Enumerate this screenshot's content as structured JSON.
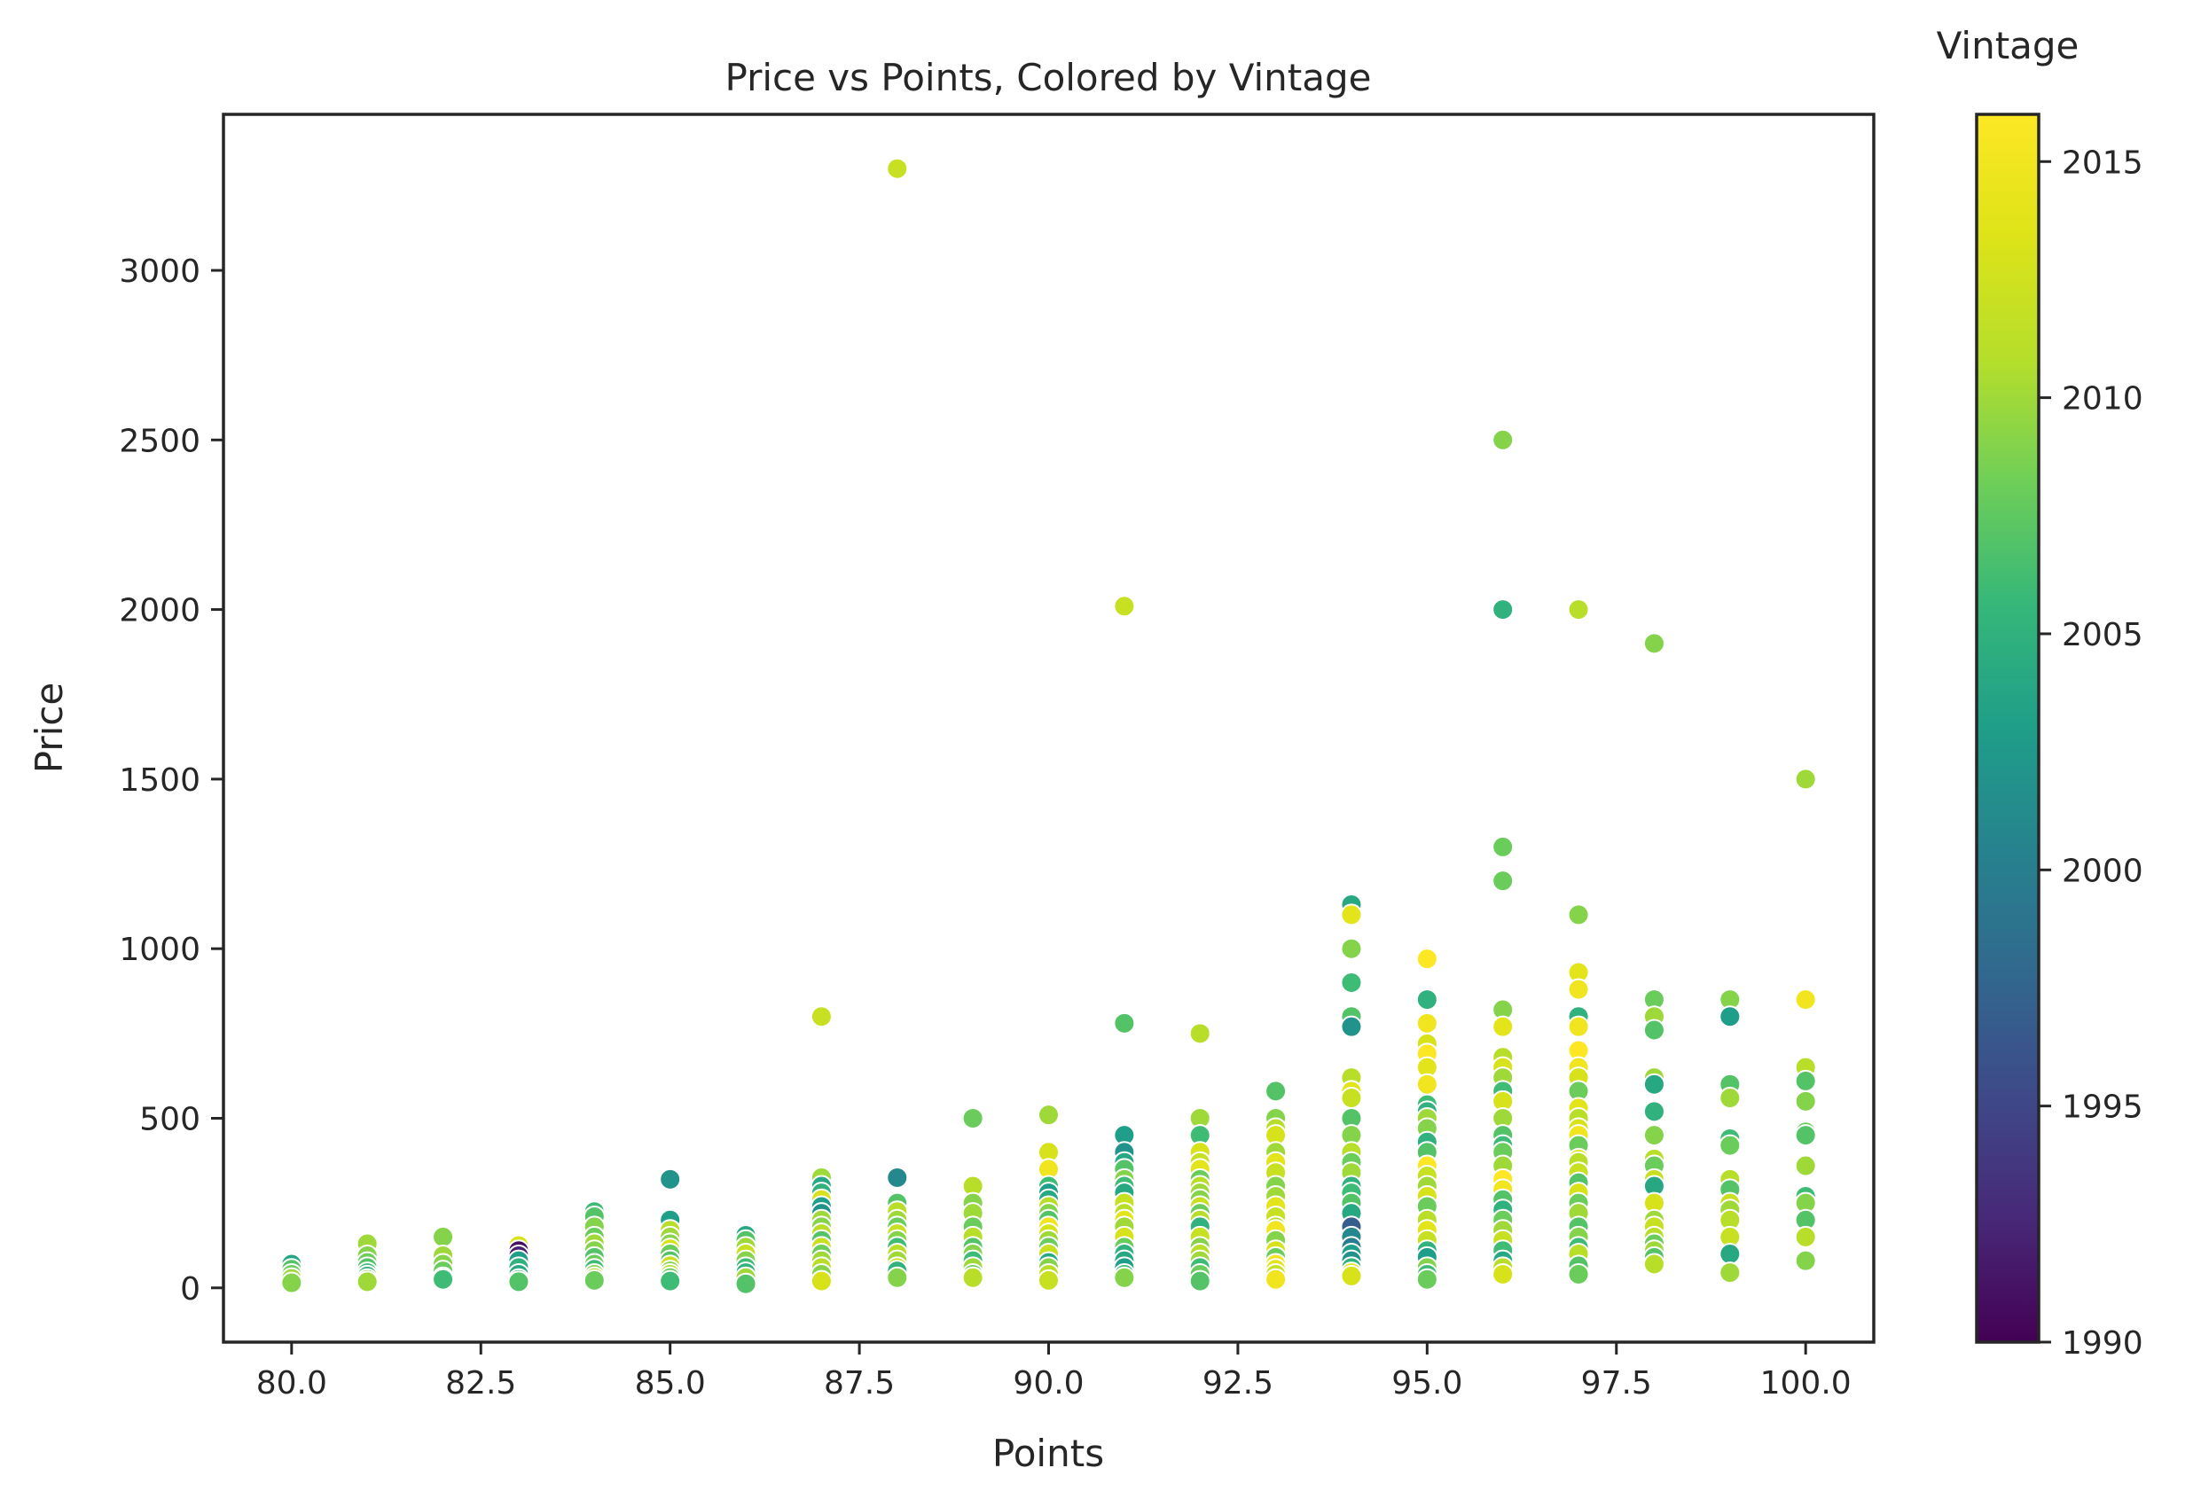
{
  "chart_data": {
    "type": "scatter",
    "title": "Price vs Points, Colored by Vintage",
    "xlabel": "Points",
    "ylabel": "Price",
    "xlim": [
      79.1,
      100.9
    ],
    "ylim": [
      -160,
      3460
    ],
    "xticks": [
      80.0,
      82.5,
      85.0,
      87.5,
      90.0,
      92.5,
      95.0,
      97.5,
      100.0
    ],
    "xtick_labels": [
      "80.0",
      "82.5",
      "85.0",
      "87.5",
      "90.0",
      "92.5",
      "95.0",
      "97.5",
      "100.0"
    ],
    "yticks": [
      0,
      500,
      1000,
      1500,
      2000,
      2500,
      3000
    ],
    "ytick_labels": [
      "0",
      "500",
      "1000",
      "1500",
      "2000",
      "2500",
      "3000"
    ],
    "grid": false,
    "colorbar": {
      "label": "Vintage",
      "colormap": "viridis",
      "range": [
        1990,
        2016
      ],
      "ticks": [
        1990,
        1995,
        2000,
        2005,
        2010,
        2015
      ],
      "tick_labels": [
        "1990",
        "1995",
        "2000",
        "2005",
        "2010",
        "2015"
      ]
    },
    "points": [
      [
        80,
        70,
        2004
      ],
      [
        80,
        55,
        2007
      ],
      [
        80,
        40,
        2008
      ],
      [
        80,
        28,
        2010
      ],
      [
        80,
        15,
        2009
      ],
      [
        81,
        130,
        2010
      ],
      [
        81,
        95,
        2009
      ],
      [
        81,
        75,
        2008
      ],
      [
        81,
        60,
        2007
      ],
      [
        81,
        45,
        2006
      ],
      [
        81,
        35,
        2005
      ],
      [
        81,
        25,
        2009
      ],
      [
        81,
        18,
        2010
      ],
      [
        82,
        150,
        2009
      ],
      [
        82,
        95,
        2010
      ],
      [
        82,
        70,
        2009
      ],
      [
        82,
        50,
        2008
      ],
      [
        82,
        30,
        2007
      ],
      [
        82,
        25,
        2006
      ],
      [
        83,
        125,
        2013
      ],
      [
        83,
        110,
        1991
      ],
      [
        83,
        95,
        1992
      ],
      [
        83,
        80,
        2003
      ],
      [
        83,
        60,
        2005
      ],
      [
        83,
        40,
        2004
      ],
      [
        83,
        25,
        2006
      ],
      [
        83,
        18,
        2007
      ],
      [
        84,
        225,
        2006
      ],
      [
        84,
        210,
        2007
      ],
      [
        84,
        180,
        2009
      ],
      [
        84,
        150,
        2008
      ],
      [
        84,
        130,
        2010
      ],
      [
        84,
        110,
        2009
      ],
      [
        84,
        90,
        2007
      ],
      [
        84,
        70,
        2008
      ],
      [
        84,
        55,
        2006
      ],
      [
        84,
        40,
        2009
      ],
      [
        84,
        30,
        2011
      ],
      [
        84,
        22,
        2008
      ],
      [
        85,
        320,
        2002
      ],
      [
        85,
        200,
        2003
      ],
      [
        85,
        170,
        2011
      ],
      [
        85,
        150,
        2010
      ],
      [
        85,
        130,
        2009
      ],
      [
        85,
        115,
        2013
      ],
      [
        85,
        100,
        2008
      ],
      [
        85,
        80,
        2007
      ],
      [
        85,
        65,
        2012
      ],
      [
        85,
        50,
        2009
      ],
      [
        85,
        40,
        2011
      ],
      [
        85,
        30,
        2008
      ],
      [
        85,
        20,
        2006
      ],
      [
        86,
        155,
        2004
      ],
      [
        86,
        140,
        2007
      ],
      [
        86,
        120,
        2010
      ],
      [
        86,
        100,
        2012
      ],
      [
        86,
        80,
        2009
      ],
      [
        86,
        60,
        2006
      ],
      [
        86,
        45,
        2005
      ],
      [
        86,
        30,
        2010
      ],
      [
        86,
        12,
        2007
      ],
      [
        87,
        800,
        2012
      ],
      [
        87,
        325,
        2010
      ],
      [
        87,
        300,
        2004
      ],
      [
        87,
        280,
        2005
      ],
      [
        87,
        260,
        2013
      ],
      [
        87,
        240,
        2003
      ],
      [
        87,
        220,
        2002
      ],
      [
        87,
        200,
        2010
      ],
      [
        87,
        180,
        2009
      ],
      [
        87,
        160,
        2011
      ],
      [
        87,
        140,
        2007
      ],
      [
        87,
        120,
        2012
      ],
      [
        87,
        100,
        2008
      ],
      [
        87,
        80,
        2010
      ],
      [
        87,
        60,
        2011
      ],
      [
        87,
        40,
        2009
      ],
      [
        87,
        20,
        2013
      ],
      [
        88,
        3300,
        2012
      ],
      [
        88,
        325,
        2001
      ],
      [
        88,
        250,
        2007
      ],
      [
        88,
        225,
        2011
      ],
      [
        88,
        200,
        2010
      ],
      [
        88,
        180,
        2008
      ],
      [
        88,
        160,
        2012
      ],
      [
        88,
        140,
        2009
      ],
      [
        88,
        120,
        2006
      ],
      [
        88,
        100,
        2011
      ],
      [
        88,
        80,
        2010
      ],
      [
        88,
        60,
        2012
      ],
      [
        88,
        50,
        2005
      ],
      [
        88,
        30,
        2009
      ],
      [
        89,
        500,
        2008
      ],
      [
        89,
        300,
        2011
      ],
      [
        89,
        250,
        2009
      ],
      [
        89,
        220,
        2010
      ],
      [
        89,
        180,
        2008
      ],
      [
        89,
        150,
        2011
      ],
      [
        89,
        120,
        2007
      ],
      [
        89,
        100,
        2009
      ],
      [
        89,
        80,
        2006
      ],
      [
        89,
        60,
        2010
      ],
      [
        89,
        40,
        2008
      ],
      [
        89,
        30,
        2011
      ],
      [
        90,
        510,
        2010
      ],
      [
        90,
        400,
        2013
      ],
      [
        90,
        350,
        2015
      ],
      [
        90,
        300,
        2006
      ],
      [
        90,
        280,
        2003
      ],
      [
        90,
        260,
        2004
      ],
      [
        90,
        240,
        2011
      ],
      [
        90,
        220,
        2009
      ],
      [
        90,
        200,
        2007
      ],
      [
        90,
        180,
        2015
      ],
      [
        90,
        160,
        2013
      ],
      [
        90,
        140,
        2010
      ],
      [
        90,
        120,
        2008
      ],
      [
        90,
        100,
        2012
      ],
      [
        90,
        75,
        2004
      ],
      [
        90,
        60,
        2009
      ],
      [
        90,
        40,
        2011
      ],
      [
        90,
        22,
        2012
      ],
      [
        91,
        2010,
        2012
      ],
      [
        91,
        780,
        2007
      ],
      [
        91,
        450,
        2003
      ],
      [
        91,
        400,
        2002
      ],
      [
        91,
        370,
        2004
      ],
      [
        91,
        350,
        2007
      ],
      [
        91,
        320,
        2009
      ],
      [
        91,
        300,
        2006
      ],
      [
        91,
        280,
        2004
      ],
      [
        91,
        250,
        2012
      ],
      [
        91,
        220,
        2011
      ],
      [
        91,
        200,
        2014
      ],
      [
        91,
        180,
        2010
      ],
      [
        91,
        150,
        2013
      ],
      [
        91,
        120,
        2008
      ],
      [
        91,
        100,
        2005
      ],
      [
        91,
        80,
        2004
      ],
      [
        91,
        60,
        2003
      ],
      [
        91,
        40,
        2006
      ],
      [
        91,
        30,
        2009
      ],
      [
        92,
        750,
        2011
      ],
      [
        92,
        500,
        2010
      ],
      [
        92,
        450,
        2006
      ],
      [
        92,
        400,
        2013
      ],
      [
        92,
        370,
        2012
      ],
      [
        92,
        350,
        2014
      ],
      [
        92,
        320,
        2008
      ],
      [
        92,
        300,
        2011
      ],
      [
        92,
        280,
        2010
      ],
      [
        92,
        260,
        2009
      ],
      [
        92,
        240,
        2012
      ],
      [
        92,
        220,
        2008
      ],
      [
        92,
        200,
        2011
      ],
      [
        92,
        180,
        2005
      ],
      [
        92,
        150,
        2012
      ],
      [
        92,
        120,
        2009
      ],
      [
        92,
        100,
        2011
      ],
      [
        92,
        80,
        2010
      ],
      [
        92,
        60,
        2006
      ],
      [
        92,
        40,
        2008
      ],
      [
        92,
        20,
        2007
      ],
      [
        93,
        580,
        2007
      ],
      [
        93,
        500,
        2009
      ],
      [
        93,
        470,
        2011
      ],
      [
        93,
        450,
        2013
      ],
      [
        93,
        400,
        2010
      ],
      [
        93,
        370,
        2014
      ],
      [
        93,
        340,
        2012
      ],
      [
        93,
        300,
        2009
      ],
      [
        93,
        270,
        2010
      ],
      [
        93,
        240,
        2014
      ],
      [
        93,
        210,
        2012
      ],
      [
        93,
        180,
        2011
      ],
      [
        93,
        170,
        2015
      ],
      [
        93,
        140,
        2009
      ],
      [
        93,
        110,
        2013
      ],
      [
        93,
        90,
        2008
      ],
      [
        93,
        70,
        2015
      ],
      [
        93,
        55,
        2014
      ],
      [
        93,
        40,
        2012
      ],
      [
        93,
        25,
        2015
      ],
      [
        94,
        1130,
        2004
      ],
      [
        94,
        1100,
        2014
      ],
      [
        94,
        1000,
        2009
      ],
      [
        94,
        900,
        2006
      ],
      [
        94,
        800,
        2007
      ],
      [
        94,
        770,
        2002
      ],
      [
        94,
        620,
        2011
      ],
      [
        94,
        580,
        2014
      ],
      [
        94,
        560,
        2012
      ],
      [
        94,
        500,
        2007
      ],
      [
        94,
        450,
        2009
      ],
      [
        94,
        400,
        2011
      ],
      [
        94,
        370,
        2008
      ],
      [
        94,
        340,
        2010
      ],
      [
        94,
        300,
        2005
      ],
      [
        94,
        280,
        2006
      ],
      [
        94,
        250,
        2007
      ],
      [
        94,
        220,
        2004
      ],
      [
        94,
        180,
        1997
      ],
      [
        94,
        150,
        2001
      ],
      [
        94,
        120,
        2000
      ],
      [
        94,
        100,
        2003
      ],
      [
        94,
        80,
        2002
      ],
      [
        94,
        60,
        2005
      ],
      [
        94,
        45,
        2014
      ],
      [
        94,
        35,
        2013
      ],
      [
        95,
        970,
        2016
      ],
      [
        95,
        850,
        2005
      ],
      [
        95,
        780,
        2015
      ],
      [
        95,
        720,
        2013
      ],
      [
        95,
        690,
        2016
      ],
      [
        95,
        650,
        2014
      ],
      [
        95,
        600,
        2015
      ],
      [
        95,
        540,
        2006
      ],
      [
        95,
        520,
        2005
      ],
      [
        95,
        500,
        2010
      ],
      [
        95,
        470,
        2009
      ],
      [
        95,
        430,
        2005
      ],
      [
        95,
        400,
        2007
      ],
      [
        95,
        360,
        2016
      ],
      [
        95,
        330,
        2012
      ],
      [
        95,
        300,
        2010
      ],
      [
        95,
        270,
        2013
      ],
      [
        95,
        240,
        2008
      ],
      [
        95,
        200,
        2011
      ],
      [
        95,
        170,
        2014
      ],
      [
        95,
        140,
        2012
      ],
      [
        95,
        110,
        2005
      ],
      [
        95,
        90,
        2003
      ],
      [
        95,
        60,
        2009
      ],
      [
        95,
        40,
        2006
      ],
      [
        95,
        25,
        2008
      ],
      [
        96,
        2500,
        2009
      ],
      [
        96,
        2000,
        2005
      ],
      [
        96,
        1300,
        2008
      ],
      [
        96,
        1200,
        2008
      ],
      [
        96,
        820,
        2009
      ],
      [
        96,
        770,
        2014
      ],
      [
        96,
        680,
        2011
      ],
      [
        96,
        650,
        2013
      ],
      [
        96,
        620,
        2010
      ],
      [
        96,
        580,
        2006
      ],
      [
        96,
        550,
        2013
      ],
      [
        96,
        500,
        2010
      ],
      [
        96,
        450,
        2007
      ],
      [
        96,
        420,
        2006
      ],
      [
        96,
        400,
        2008
      ],
      [
        96,
        360,
        2010
      ],
      [
        96,
        320,
        2016
      ],
      [
        96,
        290,
        2015
      ],
      [
        96,
        260,
        2007
      ],
      [
        96,
        230,
        2005
      ],
      [
        96,
        200,
        2008
      ],
      [
        96,
        170,
        2010
      ],
      [
        96,
        140,
        2012
      ],
      [
        96,
        110,
        2006
      ],
      [
        96,
        80,
        2004
      ],
      [
        96,
        60,
        2011
      ],
      [
        96,
        40,
        2013
      ],
      [
        97,
        2000,
        2011
      ],
      [
        97,
        1100,
        2009
      ],
      [
        97,
        930,
        2014
      ],
      [
        97,
        880,
        2015
      ],
      [
        97,
        800,
        2005
      ],
      [
        97,
        770,
        2015
      ],
      [
        97,
        700,
        2016
      ],
      [
        97,
        650,
        2015
      ],
      [
        97,
        620,
        2013
      ],
      [
        97,
        580,
        2008
      ],
      [
        97,
        530,
        2014
      ],
      [
        97,
        500,
        2011
      ],
      [
        97,
        470,
        2013
      ],
      [
        97,
        450,
        2015
      ],
      [
        97,
        420,
        2008
      ],
      [
        97,
        380,
        2014
      ],
      [
        97,
        370,
        2011
      ],
      [
        97,
        340,
        2012
      ],
      [
        97,
        310,
        2007
      ],
      [
        97,
        280,
        2013
      ],
      [
        97,
        250,
        2008
      ],
      [
        97,
        220,
        2010
      ],
      [
        97,
        180,
        2007
      ],
      [
        97,
        150,
        2009
      ],
      [
        97,
        120,
        2006
      ],
      [
        97,
        100,
        2011
      ],
      [
        97,
        65,
        2007
      ],
      [
        97,
        40,
        2008
      ],
      [
        98,
        1900,
        2009
      ],
      [
        98,
        850,
        2008
      ],
      [
        98,
        800,
        2010
      ],
      [
        98,
        760,
        2007
      ],
      [
        98,
        620,
        2010
      ],
      [
        98,
        600,
        2004
      ],
      [
        98,
        520,
        2005
      ],
      [
        98,
        450,
        2009
      ],
      [
        98,
        380,
        2011
      ],
      [
        98,
        360,
        2008
      ],
      [
        98,
        320,
        2012
      ],
      [
        98,
        300,
        2004
      ],
      [
        98,
        250,
        2013
      ],
      [
        98,
        200,
        2010
      ],
      [
        98,
        180,
        2012
      ],
      [
        98,
        150,
        2011
      ],
      [
        98,
        130,
        2008
      ],
      [
        98,
        110,
        2010
      ],
      [
        98,
        90,
        2007
      ],
      [
        98,
        70,
        2011
      ],
      [
        99,
        850,
        2009
      ],
      [
        99,
        800,
        2003
      ],
      [
        99,
        600,
        2007
      ],
      [
        99,
        560,
        2010
      ],
      [
        99,
        440,
        2006
      ],
      [
        99,
        420,
        2008
      ],
      [
        99,
        320,
        2011
      ],
      [
        99,
        290,
        2007
      ],
      [
        99,
        250,
        2012
      ],
      [
        99,
        230,
        2010
      ],
      [
        99,
        200,
        2011
      ],
      [
        99,
        150,
        2012
      ],
      [
        99,
        100,
        2004
      ],
      [
        99,
        45,
        2010
      ],
      [
        100,
        1500,
        2010
      ],
      [
        100,
        850,
        2015
      ],
      [
        100,
        650,
        2011
      ],
      [
        100,
        610,
        2007
      ],
      [
        100,
        550,
        2009
      ],
      [
        100,
        460,
        2008
      ],
      [
        100,
        450,
        2007
      ],
      [
        100,
        360,
        2010
      ],
      [
        100,
        270,
        2006
      ],
      [
        100,
        250,
        2009
      ],
      [
        100,
        200,
        2007
      ],
      [
        100,
        150,
        2011
      ],
      [
        100,
        80,
        2009
      ]
    ]
  }
}
